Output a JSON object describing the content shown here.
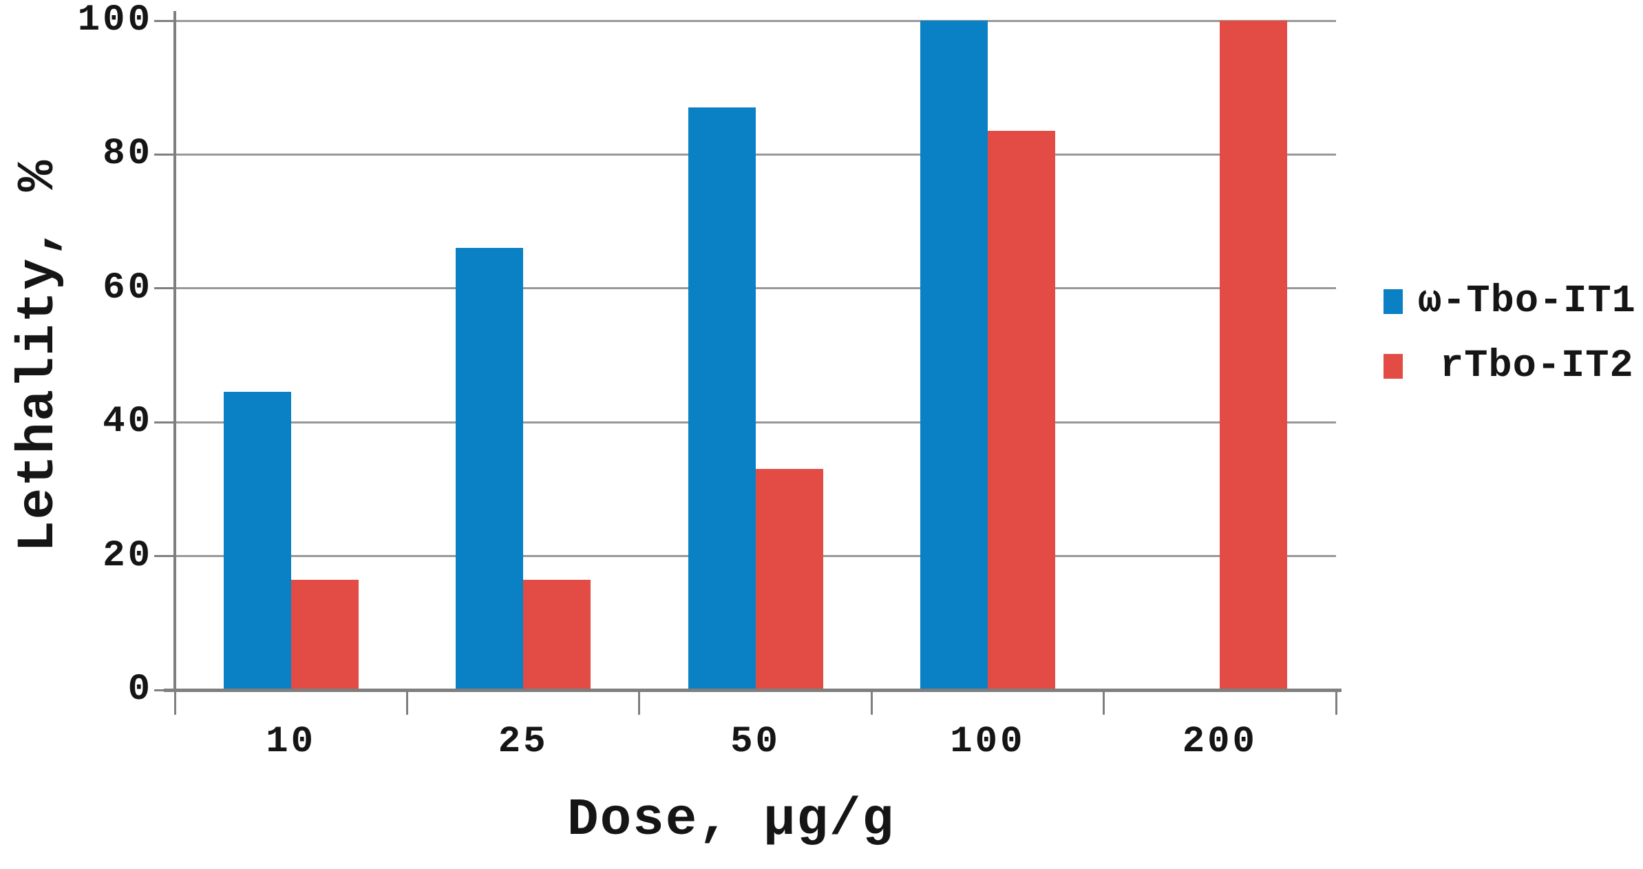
{
  "chart_data": {
    "type": "bar",
    "title": "",
    "xlabel": "Dose, µg/g",
    "ylabel": "Lethality, %",
    "categories": [
      "10",
      "25",
      "50",
      "100",
      "200"
    ],
    "series": [
      {
        "name": "ω-Tbo-IT1",
        "color": "#0a80c5",
        "values": [
          44.5,
          66,
          87,
          100,
          null
        ]
      },
      {
        "name": "rTbo-IT2",
        "color": "#e34b45",
        "values": [
          16.5,
          16.5,
          33,
          83.5,
          100
        ]
      }
    ],
    "ylim": [
      0,
      100
    ],
    "yticks": [
      0,
      20,
      40,
      60,
      80,
      100
    ],
    "grid": "horizontal",
    "legend_position": "right"
  },
  "colors": {
    "grid": "#989898",
    "axis": "#7f7f7f",
    "text": "#151515",
    "background": "#ffffff"
  }
}
